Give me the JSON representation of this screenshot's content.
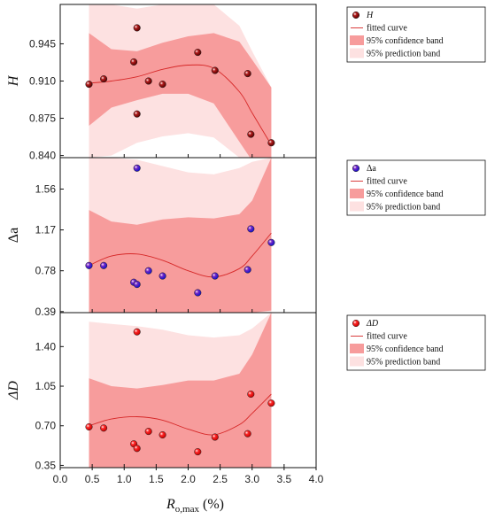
{
  "chart_data": {
    "type": "scatter",
    "x_axis": {
      "label_main": "R",
      "label_sub": "o,max",
      "label_unit": " (%)",
      "xlim": [
        0.0,
        4.0
      ],
      "ticks": [
        0.0,
        0.5,
        1.0,
        1.5,
        2.0,
        2.5,
        3.0,
        3.5,
        4.0
      ],
      "tick_labels": [
        "0.0",
        "0.5",
        "1.0",
        "1.5",
        "2.0",
        "2.5",
        "3.0",
        "3.5",
        "4.0"
      ]
    },
    "fit_range": [
      0.45,
      3.3
    ],
    "colors": {
      "confidence_band": "#f79c9c",
      "prediction_band": "#fde1e1",
      "fit_line": "#d62828"
    },
    "panels": [
      {
        "id": "H",
        "ylabel": "H",
        "ylabel_italic": true,
        "ylim": [
          0.838,
          0.982
        ],
        "ticks": [
          0.84,
          0.875,
          0.91,
          0.945
        ],
        "tick_labels": [
          "0.840",
          "0.875",
          "0.910",
          "0.945"
        ],
        "marker_colors": [
          "#5a0000",
          "#b41e1e"
        ],
        "legend": {
          "marker_label": "H",
          "fit_label": "fitted curve",
          "confidence_label": "95% confidence band",
          "prediction_label": "95% prediction band"
        },
        "points": {
          "x": [
            0.45,
            0.68,
            1.15,
            1.2,
            1.2,
            1.38,
            1.6,
            2.15,
            2.42,
            2.93,
            2.98,
            3.3
          ],
          "y": [
            0.907,
            0.912,
            0.928,
            0.96,
            0.879,
            0.91,
            0.907,
            0.937,
            0.92,
            0.917,
            0.86,
            0.852
          ]
        },
        "fit": {
          "x": [
            0.45,
            0.8,
            1.2,
            1.6,
            2.0,
            2.4,
            2.8,
            3.0,
            3.3
          ],
          "y": [
            0.908,
            0.91,
            0.914,
            0.921,
            0.925,
            0.922,
            0.9,
            0.88,
            0.85
          ]
        },
        "confidence_band": {
          "lower": [
            0.868,
            0.885,
            0.892,
            0.898,
            0.898,
            0.889,
            0.853,
            0.835,
            0.83
          ],
          "upper": [
            0.955,
            0.94,
            0.938,
            0.946,
            0.952,
            0.955,
            0.947,
            0.93,
            0.904
          ]
        },
        "prediction_band": {
          "lower": [
            0.838,
            0.84,
            0.852,
            0.858,
            0.861,
            0.857,
            0.838,
            0.838,
            0.838
          ],
          "upper": [
            0.982,
            0.982,
            0.978,
            0.982,
            0.982,
            0.982,
            0.962,
            0.938,
            0.904
          ]
        }
      },
      {
        "id": "Da",
        "ylabel": "Δa",
        "ylabel_italic": false,
        "ylim": [
          0.38,
          1.86
        ],
        "ticks": [
          0.39,
          0.78,
          1.17,
          1.56
        ],
        "tick_labels": [
          "0.39",
          "0.78",
          "1.17",
          "1.56"
        ],
        "marker_colors": [
          "#1212c8",
          "#7a2ac8"
        ],
        "legend": {
          "marker_label": "Δa",
          "fit_label": "fitted curve",
          "confidence_label": "95% confidence band",
          "prediction_label": "95% prediction band"
        },
        "points": {
          "x": [
            0.45,
            0.68,
            1.15,
            1.2,
            1.2,
            1.38,
            1.6,
            2.15,
            2.42,
            2.93,
            2.98,
            3.3
          ],
          "y": [
            0.83,
            0.83,
            0.67,
            1.76,
            0.65,
            0.78,
            0.73,
            0.57,
            0.73,
            0.79,
            1.18,
            1.05
          ]
        },
        "fit": {
          "x": [
            0.45,
            0.8,
            1.2,
            1.6,
            2.0,
            2.4,
            2.8,
            3.0,
            3.3
          ],
          "y": [
            0.83,
            0.92,
            0.94,
            0.88,
            0.78,
            0.72,
            0.8,
            0.92,
            1.14
          ]
        },
        "confidence_band": {
          "lower": [
            0.38,
            0.38,
            0.38,
            0.38,
            0.38,
            0.38,
            0.38,
            0.38,
            0.4
          ],
          "upper": [
            1.36,
            1.25,
            1.22,
            1.27,
            1.29,
            1.28,
            1.32,
            1.45,
            1.86
          ]
        },
        "prediction_band": {
          "lower": [
            0.38,
            0.38,
            0.38,
            0.38,
            0.38,
            0.38,
            0.38,
            0.38,
            0.38
          ],
          "upper": [
            1.86,
            1.86,
            1.84,
            1.78,
            1.72,
            1.7,
            1.76,
            1.82,
            1.86
          ]
        }
      },
      {
        "id": "DD",
        "ylabel": "ΔD",
        "ylabel_italic": true,
        "ylim": [
          0.33,
          1.7
        ],
        "ticks": [
          0.35,
          0.7,
          1.05,
          1.4
        ],
        "tick_labels": [
          "0.35",
          "0.70",
          "1.05",
          "1.40"
        ],
        "marker_colors": [
          "#c80000",
          "#ff2a2a"
        ],
        "legend": {
          "marker_label": "ΔD",
          "fit_label": "fitted curve",
          "confidence_label": "95% confidence band",
          "prediction_label": "95% prediction band"
        },
        "points": {
          "x": [
            0.45,
            0.68,
            1.15,
            1.2,
            1.2,
            1.38,
            1.6,
            2.15,
            2.42,
            2.93,
            2.98,
            3.3
          ],
          "y": [
            0.69,
            0.68,
            0.54,
            1.53,
            0.5,
            0.65,
            0.62,
            0.47,
            0.6,
            0.63,
            0.98,
            0.9
          ]
        },
        "fit": {
          "x": [
            0.45,
            0.8,
            1.2,
            1.6,
            2.0,
            2.4,
            2.8,
            3.0,
            3.3
          ],
          "y": [
            0.7,
            0.76,
            0.78,
            0.75,
            0.67,
            0.62,
            0.71,
            0.81,
            0.98
          ]
        },
        "confidence_band": {
          "lower": [
            0.33,
            0.33,
            0.33,
            0.33,
            0.33,
            0.33,
            0.33,
            0.33,
            0.33
          ],
          "upper": [
            1.12,
            1.05,
            1.03,
            1.06,
            1.1,
            1.1,
            1.16,
            1.33,
            1.7
          ]
        },
        "prediction_band": {
          "lower": [
            0.33,
            0.33,
            0.33,
            0.33,
            0.33,
            0.33,
            0.33,
            0.33,
            0.33
          ],
          "upper": [
            1.62,
            1.6,
            1.58,
            1.55,
            1.5,
            1.48,
            1.5,
            1.56,
            1.7
          ]
        }
      }
    ]
  }
}
